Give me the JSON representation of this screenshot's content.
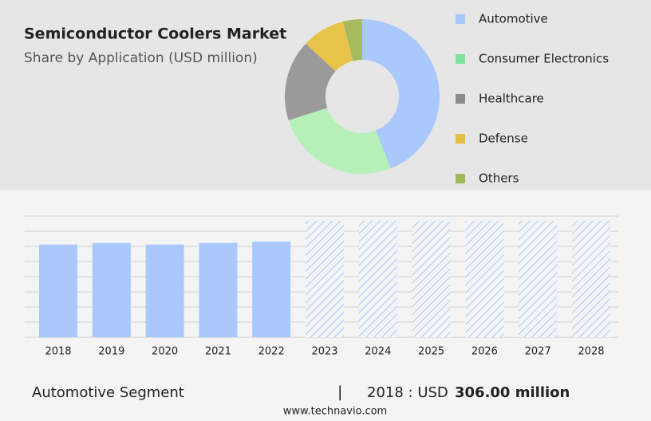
{
  "chart_data": [
    {
      "type": "donut",
      "title": "Semiconductor Coolers Market",
      "subtitle": "Share by Application (USD million)",
      "categories": [
        "Automotive",
        "Consumer Electronics",
        "Healthcare",
        "Defense",
        "Others"
      ],
      "values": [
        44,
        26,
        17,
        9,
        4
      ],
      "colors": [
        "#a9c8fb",
        "#b5f0b8",
        "#9a9a9a",
        "#e8c34a",
        "#a6ba5e"
      ],
      "legend_colors": [
        "#a9c8fb",
        "#7ee39c",
        "#8c8c8c",
        "#e0bf45",
        "#9cb85a"
      ]
    },
    {
      "type": "bar",
      "categories": [
        "2018",
        "2019",
        "2020",
        "2021",
        "2022",
        "2023",
        "2024",
        "2025",
        "2026",
        "2027",
        "2028"
      ],
      "values": [
        306,
        311,
        306,
        311,
        316,
        null,
        null,
        null,
        null,
        null,
        null
      ],
      "color": "#a9c8fb",
      "ylim": [
        0,
        400
      ],
      "yticks": [
        0,
        50,
        100,
        150,
        200,
        250,
        300,
        350,
        400
      ],
      "grid": true
    }
  ],
  "footer": {
    "segment": "Automotive Segment",
    "separator": "|",
    "year_label": "2018 : USD",
    "value_label": "306.00 million",
    "source": "www.technavio.com"
  }
}
